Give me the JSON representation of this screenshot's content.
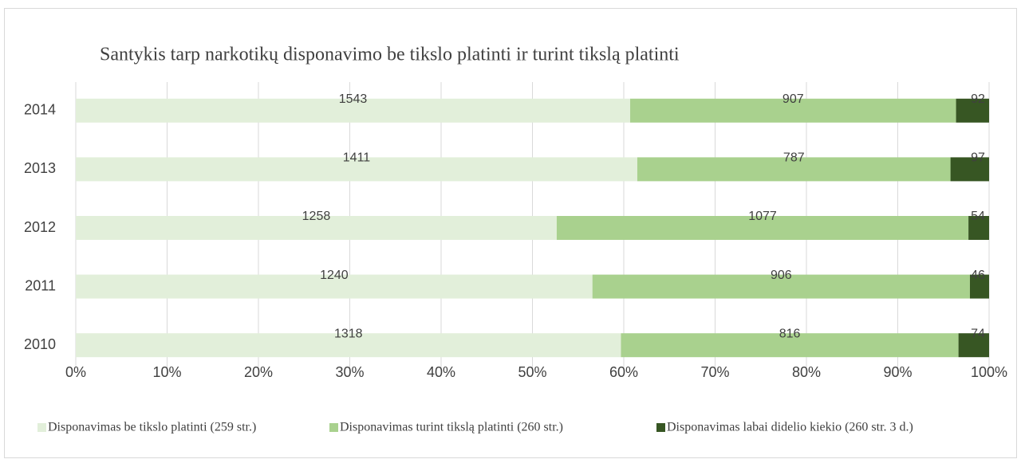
{
  "chart_data": {
    "type": "bar",
    "orientation": "horizontal",
    "stacking": "percent",
    "title": "Santykis tarp narkotikų disponavimo be tikslo platinti ir turint tikslą platinti",
    "categories": [
      "2014",
      "2013",
      "2012",
      "2011",
      "2010"
    ],
    "series": [
      {
        "name": "Disponavimas be tikslo platinti (259 str.)",
        "color": "#e2efda",
        "values": [
          1543,
          1411,
          1258,
          1240,
          1318
        ]
      },
      {
        "name": "Disponavimas turint tikslą platinti (260 str.)",
        "color": "#a9d18e",
        "values": [
          907,
          787,
          1077,
          906,
          816
        ]
      },
      {
        "name": "Disponavimas labai didelio kiekio (260 str. 3 d.)",
        "color": "#375623",
        "values": [
          92,
          97,
          54,
          46,
          74
        ]
      }
    ],
    "xlim": [
      0,
      100
    ],
    "xticks": [
      {
        "value": 0,
        "label": "0%"
      },
      {
        "value": 10,
        "label": "10%"
      },
      {
        "value": 20,
        "label": "20%"
      },
      {
        "value": 30,
        "label": "30%"
      },
      {
        "value": 40,
        "label": "40%"
      },
      {
        "value": 50,
        "label": "50%"
      },
      {
        "value": 60,
        "label": "60%"
      },
      {
        "value": 70,
        "label": "70%"
      },
      {
        "value": 80,
        "label": "80%"
      },
      {
        "value": 90,
        "label": "90%"
      },
      {
        "value": 100,
        "label": "100%"
      }
    ],
    "grid": true,
    "legend": "bottom"
  }
}
